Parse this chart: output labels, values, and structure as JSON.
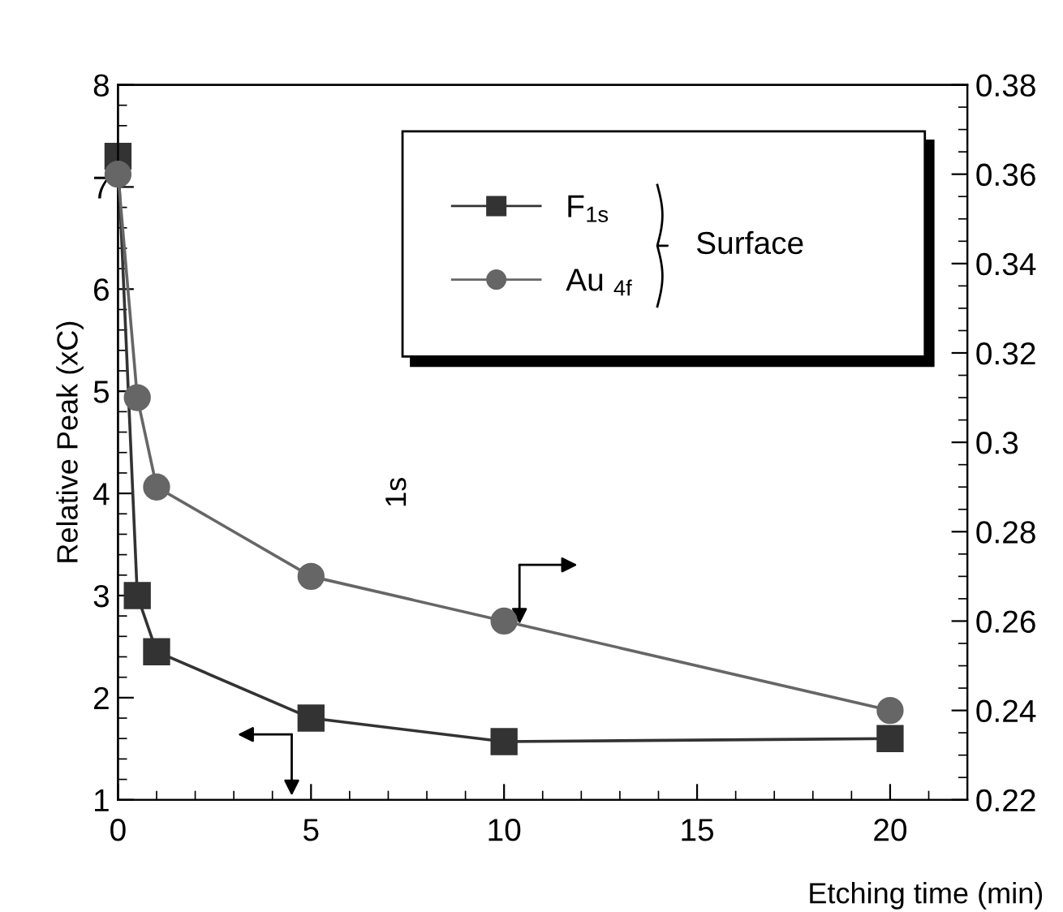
{
  "chart_data": {
    "type": "line",
    "x": [
      0,
      0.5,
      1,
      5,
      10,
      20
    ],
    "series": [
      {
        "name": "F$_{1s}$",
        "color": "#333333",
        "marker": "square",
        "values": [
          7.3,
          3.0,
          2.45,
          1.8,
          1.57,
          1.6
        ]
      },
      {
        "name": "Au $_{4f}$",
        "color": "#666666",
        "marker": "circle",
        "axis": "y2",
        "values": [
          0.36,
          0.31,
          0.29,
          0.27,
          0.26,
          0.24
        ]
      }
    ],
    "xlabel": "Etching time (min)",
    "ylabel": "Relative Peak (xC)",
    "legend_title": "Surface",
    "annotations": [
      "1s"
    ],
    "xlim": [
      0,
      22
    ],
    "xticks": [
      0,
      5,
      10,
      15,
      20
    ],
    "ylim": [
      1,
      8
    ],
    "yticks": [
      1,
      2,
      3,
      4,
      5,
      6,
      7,
      8
    ],
    "y2lim": [
      0.22,
      0.38
    ],
    "y2ticks": [
      {
        "value": 0.22,
        "label": "0.22"
      },
      {
        "value": 0.24,
        "label": "0.24"
      },
      {
        "value": 0.26,
        "label": "0.26"
      },
      {
        "value": 0.28,
        "label": "0.28"
      },
      {
        "value": 0.3,
        "label": "0.3"
      },
      {
        "value": 0.32,
        "label": "0.32"
      },
      {
        "value": 0.34,
        "label": "0.34"
      },
      {
        "value": 0.36,
        "label": "0.36"
      },
      {
        "value": 0.38,
        "label": "0.38"
      }
    ],
    "legend": "top right",
    "grid": false,
    "line_style": "solid"
  }
}
